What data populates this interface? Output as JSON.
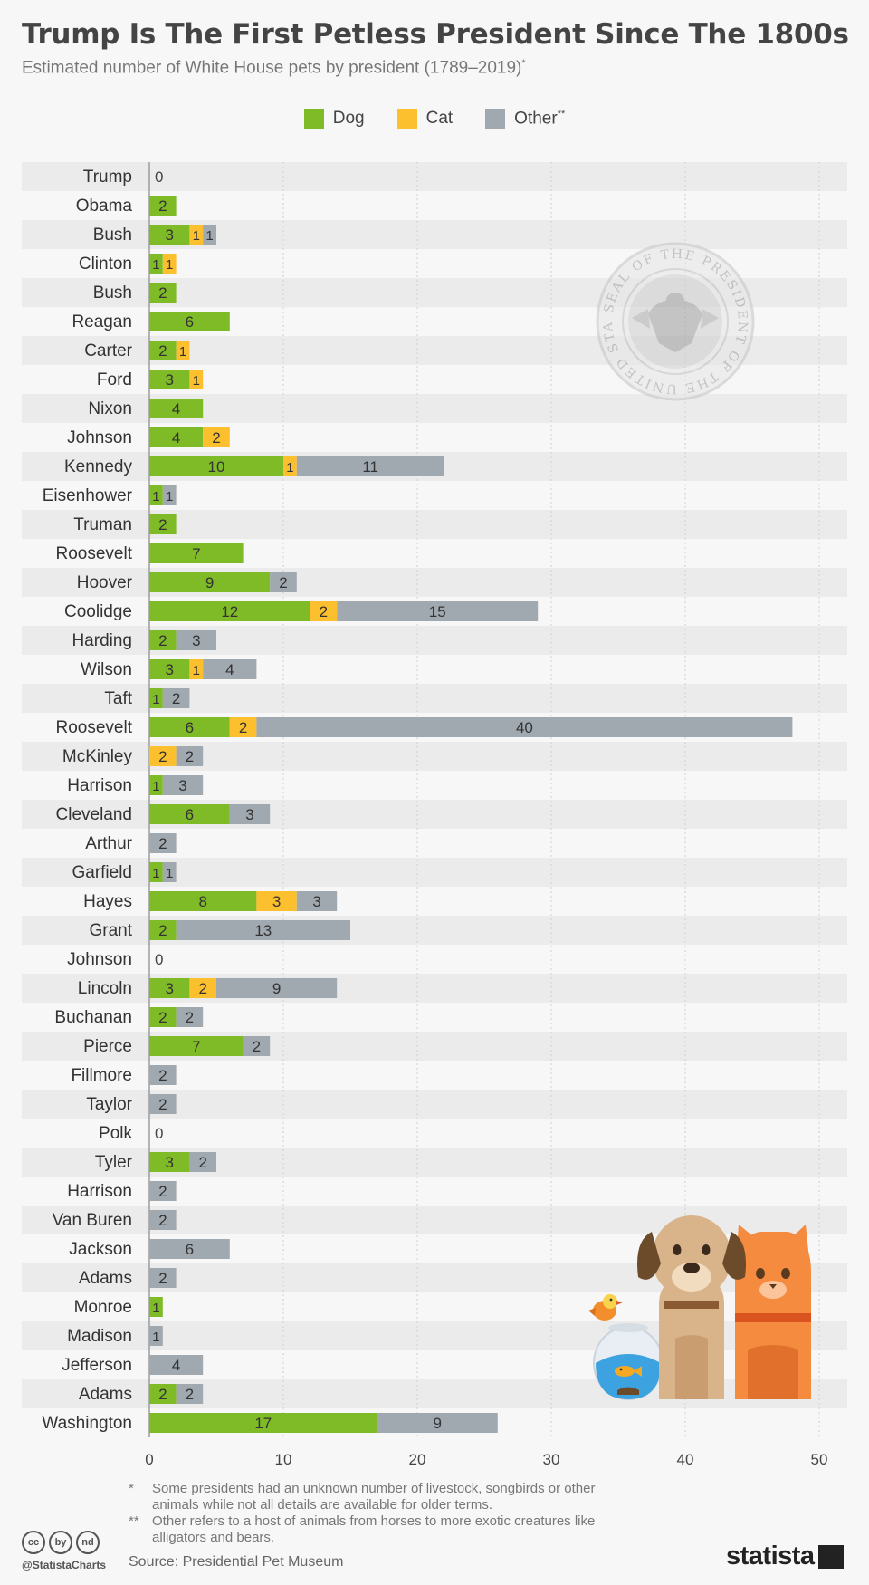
{
  "header": {
    "title": "Trump Is The First Petless President Since The 1800s",
    "subtitle": "Estimated number of White House pets by president (1789–2019)",
    "subtitle_mark": "*"
  },
  "legend": [
    {
      "label": "Dog",
      "mark": "",
      "color": "#7fba27"
    },
    {
      "label": "Cat",
      "mark": "",
      "color": "#fcc02e"
    },
    {
      "label": "Other",
      "mark": "**",
      "color": "#a0a8b0"
    }
  ],
  "chart_data": {
    "type": "bar",
    "orientation": "horizontal",
    "stacked": true,
    "categories": [
      "Trump",
      "Obama",
      "Bush",
      "Clinton",
      "Bush",
      "Reagan",
      "Carter",
      "Ford",
      "Nixon",
      "Johnson",
      "Kennedy",
      "Eisenhower",
      "Truman",
      "Roosevelt",
      "Hoover",
      "Coolidge",
      "Harding",
      "Wilson",
      "Taft",
      "Roosevelt",
      "McKinley",
      "Harrison",
      "Cleveland",
      "Arthur",
      "Garfield",
      "Hayes",
      "Grant",
      "Johnson",
      "Lincoln",
      "Buchanan",
      "Pierce",
      "Fillmore",
      "Taylor",
      "Polk",
      "Tyler",
      "Harrison",
      "Van Buren",
      "Jackson",
      "Adams",
      "Monroe",
      "Madison",
      "Jefferson",
      "Adams",
      "Washington"
    ],
    "series": [
      {
        "name": "Dog",
        "color": "#7fba27",
        "values": [
          0,
          2,
          3,
          1,
          2,
          6,
          2,
          3,
          4,
          4,
          10,
          1,
          2,
          7,
          9,
          12,
          2,
          3,
          1,
          6,
          0,
          1,
          6,
          0,
          1,
          8,
          2,
          0,
          3,
          2,
          7,
          0,
          0,
          0,
          3,
          0,
          0,
          0,
          0,
          1,
          0,
          0,
          2,
          17
        ]
      },
      {
        "name": "Cat",
        "color": "#fcc02e",
        "values": [
          0,
          0,
          1,
          1,
          0,
          0,
          1,
          1,
          0,
          2,
          1,
          0,
          0,
          0,
          0,
          2,
          0,
          1,
          0,
          2,
          2,
          0,
          0,
          0,
          0,
          3,
          0,
          0,
          2,
          0,
          0,
          0,
          0,
          0,
          0,
          0,
          0,
          0,
          0,
          0,
          0,
          0,
          0,
          0
        ]
      },
      {
        "name": "Other",
        "color": "#a0a8b0",
        "values": [
          0,
          0,
          1,
          0,
          0,
          0,
          0,
          0,
          0,
          0,
          11,
          1,
          0,
          0,
          2,
          15,
          3,
          4,
          2,
          40,
          2,
          3,
          3,
          2,
          1,
          3,
          13,
          0,
          9,
          2,
          2,
          2,
          2,
          0,
          2,
          2,
          2,
          6,
          2,
          0,
          1,
          4,
          2,
          9
        ]
      }
    ],
    "zero_label": "0",
    "xlim": [
      0,
      52
    ],
    "xticks": [
      0,
      10,
      20,
      30,
      40,
      50
    ],
    "grid": true,
    "legend_position": "top-center"
  },
  "footnotes": [
    {
      "mark": "*",
      "text": "Some presidents had an unknown number of livestock, songbirds or other animals while not all details are available for older terms."
    },
    {
      "mark": "**",
      "text": "Other refers to a host of animals from horses to more exotic creatures like alligators and bears."
    }
  ],
  "footer": {
    "cc_icons": [
      "cc",
      "by",
      "nd"
    ],
    "handle": "@StatistaCharts",
    "source": "Source: Presidential Pet Museum",
    "brand": "statista"
  },
  "seal": {
    "text": "SEAL OF THE PRESIDENT OF THE UNITED STATES"
  }
}
